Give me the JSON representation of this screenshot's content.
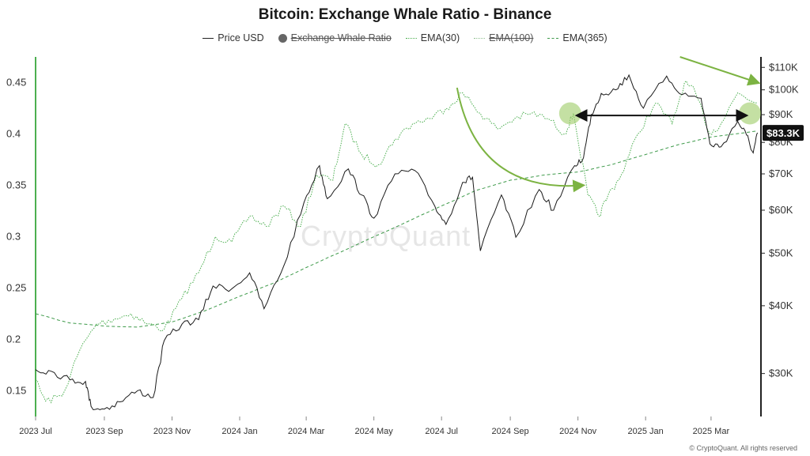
{
  "title": "Bitcoin: Exchange Whale Ratio - Binance",
  "legend": [
    {
      "label": "Price USD",
      "style": "line",
      "active": true
    },
    {
      "label": "Exchange Whale Ratio",
      "style": "dot",
      "active": false
    },
    {
      "label": "EMA(30)",
      "style": "dotted-green",
      "active": true
    },
    {
      "label": "EMA(100)",
      "style": "dotted-light",
      "active": false
    },
    {
      "label": "EMA(365)",
      "style": "dashed-green",
      "active": true
    }
  ],
  "watermark": "CryptoQuant",
  "footer": "© CryptoQuant. All rights reserved",
  "colors": {
    "price": "#1a1a1a",
    "ema30": "#4caf50",
    "ema365": "#3e9a4a",
    "highlight": "#9ccc65",
    "arrow": "#7cb342",
    "axis_left": "#4caf50"
  },
  "chart_data": {
    "type": "line",
    "x_tick_labels": [
      "2023 Jul",
      "2023 Sep",
      "2023 Nov",
      "2024 Jan",
      "2024 Mar",
      "2024 May",
      "2024 Jul",
      "2024 Sep",
      "2024 Nov",
      "2025 Jan",
      "2025 Mar"
    ],
    "x_range": [
      "2023-07-01",
      "2025-04-15"
    ],
    "left_axis": {
      "ticks": [
        "0.15",
        "0.2",
        "0.25",
        "0.3",
        "0.35",
        "0.4",
        "0.45"
      ],
      "range": [
        0.125,
        0.475
      ]
    },
    "right_axis": {
      "scale": "log",
      "ticks": [
        "$30K",
        "$40K",
        "$50K",
        "$60K",
        "$70K",
        "$80K",
        "$90K",
        "$100K",
        "$110K"
      ],
      "range": [
        25000,
        115000
      ]
    },
    "price_label": "$83.3K",
    "series": [
      {
        "name": "Price USD",
        "axis": "right",
        "points": [
          [
            "2023-07-01",
            30500
          ],
          [
            "2023-07-15",
            30300
          ],
          [
            "2023-08-01",
            29200
          ],
          [
            "2023-08-15",
            29000
          ],
          [
            "2023-08-20",
            26100
          ],
          [
            "2023-09-01",
            25800
          ],
          [
            "2023-09-15",
            26600
          ],
          [
            "2023-10-01",
            27900
          ],
          [
            "2023-10-15",
            27100
          ],
          [
            "2023-10-25",
            34500
          ],
          [
            "2023-11-10",
            37000
          ],
          [
            "2023-11-25",
            37700
          ],
          [
            "2023-12-08",
            43500
          ],
          [
            "2023-12-25",
            43000
          ],
          [
            "2024-01-10",
            46000
          ],
          [
            "2024-01-23",
            39500
          ],
          [
            "2024-02-10",
            47500
          ],
          [
            "2024-02-28",
            62000
          ],
          [
            "2024-03-13",
            72500
          ],
          [
            "2024-03-20",
            63000
          ],
          [
            "2024-04-08",
            71500
          ],
          [
            "2024-04-20",
            64000
          ],
          [
            "2024-05-01",
            58000
          ],
          [
            "2024-05-20",
            70000
          ],
          [
            "2024-06-07",
            71000
          ],
          [
            "2024-06-25",
            61000
          ],
          [
            "2024-07-05",
            56500
          ],
          [
            "2024-07-20",
            67500
          ],
          [
            "2024-07-29",
            69000
          ],
          [
            "2024-08-05",
            50500
          ],
          [
            "2024-08-24",
            64000
          ],
          [
            "2024-09-06",
            53500
          ],
          [
            "2024-09-27",
            65500
          ],
          [
            "2024-10-10",
            60000
          ],
          [
            "2024-10-29",
            72500
          ],
          [
            "2024-11-06",
            75000
          ],
          [
            "2024-11-13",
            90000
          ],
          [
            "2024-11-22",
            98500
          ],
          [
            "2024-12-05",
            100000
          ],
          [
            "2024-12-17",
            106500
          ],
          [
            "2024-12-30",
            92500
          ],
          [
            "2025-01-20",
            106000
          ],
          [
            "2025-02-03",
            98000
          ],
          [
            "2025-02-20",
            96500
          ],
          [
            "2025-02-28",
            79500
          ],
          [
            "2025-03-10",
            78500
          ],
          [
            "2025-03-25",
            87500
          ],
          [
            "2025-04-02",
            82500
          ],
          [
            "2025-04-08",
            76500
          ],
          [
            "2025-04-12",
            83300
          ]
        ]
      },
      {
        "name": "EMA(30)",
        "axis": "left",
        "points": [
          [
            "2023-07-01",
            0.16
          ],
          [
            "2023-07-10",
            0.14
          ],
          [
            "2023-07-25",
            0.145
          ],
          [
            "2023-08-10",
            0.19
          ],
          [
            "2023-08-25",
            0.215
          ],
          [
            "2023-09-10",
            0.22
          ],
          [
            "2023-09-25",
            0.225
          ],
          [
            "2023-10-10",
            0.215
          ],
          [
            "2023-10-25",
            0.21
          ],
          [
            "2023-11-10",
            0.24
          ],
          [
            "2023-11-25",
            0.265
          ],
          [
            "2023-12-10",
            0.3
          ],
          [
            "2023-12-25",
            0.295
          ],
          [
            "2024-01-10",
            0.32
          ],
          [
            "2024-01-25",
            0.31
          ],
          [
            "2024-02-10",
            0.33
          ],
          [
            "2024-02-25",
            0.31
          ],
          [
            "2024-03-10",
            0.36
          ],
          [
            "2024-03-25",
            0.355
          ],
          [
            "2024-04-05",
            0.41
          ],
          [
            "2024-04-20",
            0.38
          ],
          [
            "2024-05-05",
            0.37
          ],
          [
            "2024-05-20",
            0.395
          ],
          [
            "2024-06-05",
            0.41
          ],
          [
            "2024-06-20",
            0.415
          ],
          [
            "2024-07-05",
            0.425
          ],
          [
            "2024-07-20",
            0.44
          ],
          [
            "2024-08-05",
            0.42
          ],
          [
            "2024-08-20",
            0.405
          ],
          [
            "2024-09-05",
            0.415
          ],
          [
            "2024-09-20",
            0.42
          ],
          [
            "2024-10-05",
            0.415
          ],
          [
            "2024-10-20",
            0.4
          ],
          [
            "2024-10-28",
            0.42
          ],
          [
            "2024-11-10",
            0.34
          ],
          [
            "2024-11-20",
            0.32
          ],
          [
            "2024-11-28",
            0.34
          ],
          [
            "2024-12-10",
            0.36
          ],
          [
            "2024-12-25",
            0.4
          ],
          [
            "2025-01-10",
            0.43
          ],
          [
            "2025-01-25",
            0.41
          ],
          [
            "2025-02-05",
            0.45
          ],
          [
            "2025-02-15",
            0.44
          ],
          [
            "2025-02-28",
            0.4
          ],
          [
            "2025-03-10",
            0.41
          ],
          [
            "2025-03-25",
            0.44
          ],
          [
            "2025-04-12",
            0.43
          ]
        ]
      },
      {
        "name": "EMA(365)",
        "axis": "left",
        "points": [
          [
            "2023-07-01",
            0.225
          ],
          [
            "2023-08-01",
            0.216
          ],
          [
            "2023-09-01",
            0.213
          ],
          [
            "2023-10-01",
            0.212
          ],
          [
            "2023-11-01",
            0.217
          ],
          [
            "2023-12-01",
            0.228
          ],
          [
            "2024-01-01",
            0.242
          ],
          [
            "2024-02-01",
            0.255
          ],
          [
            "2024-03-01",
            0.27
          ],
          [
            "2024-04-01",
            0.285
          ],
          [
            "2024-05-01",
            0.3
          ],
          [
            "2024-06-01",
            0.315
          ],
          [
            "2024-07-01",
            0.33
          ],
          [
            "2024-08-01",
            0.345
          ],
          [
            "2024-09-01",
            0.355
          ],
          [
            "2024-10-01",
            0.36
          ],
          [
            "2024-11-01",
            0.363
          ],
          [
            "2024-12-01",
            0.37
          ],
          [
            "2025-01-01",
            0.38
          ],
          [
            "2025-02-01",
            0.39
          ],
          [
            "2025-03-01",
            0.397
          ],
          [
            "2025-04-12",
            0.403
          ]
        ]
      }
    ],
    "annotations": [
      {
        "type": "curved-arrow",
        "from": [
          "2024-07-15",
          0.445
        ],
        "to": [
          "2024-11-05",
          0.35
        ]
      },
      {
        "type": "highlight-circle",
        "at": [
          "2024-10-25",
          0.42
        ]
      },
      {
        "type": "highlight-circle",
        "at": [
          "2025-04-05",
          0.42
        ]
      },
      {
        "type": "double-arrow",
        "from": [
          "2024-11-01",
          0.418
        ],
        "to": [
          "2025-04-01",
          0.418
        ]
      },
      {
        "type": "straight-arrow",
        "from": [
          "2025-02-01",
          0.475
        ],
        "to": [
          "2025-04-12",
          0.45
        ]
      }
    ]
  }
}
